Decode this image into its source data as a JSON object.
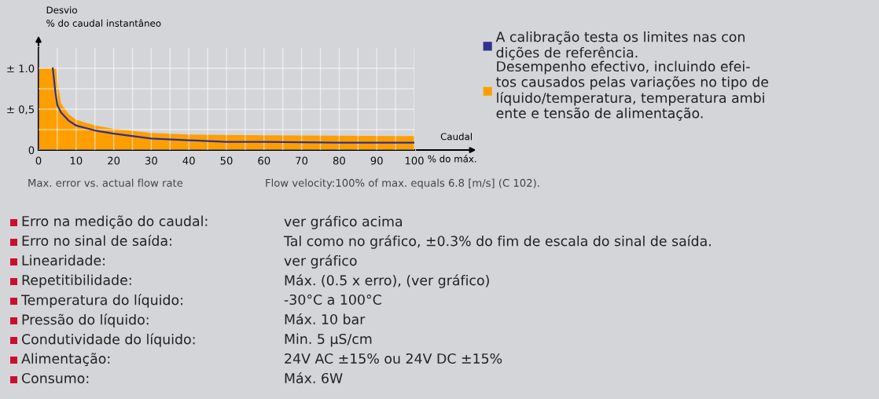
{
  "chart_data": {
    "type": "area",
    "ylabel": "Desvio\n% do caudal instantâneo",
    "xlabel": "Caudal",
    "xlim": [
      0,
      100
    ],
    "ylim": [
      0,
      1.25
    ],
    "xticks": [
      0,
      {
        "value": 5,
        "label": null
      },
      10,
      {
        "value": 15,
        "label": null
      },
      20,
      {
        "value": 25,
        "label": null
      },
      30,
      {
        "value": 35,
        "label": null
      },
      40,
      {
        "value": 45,
        "label": null
      },
      50,
      {
        "value": 55,
        "label": null
      },
      60,
      {
        "value": 65,
        "label": null
      },
      70,
      {
        "value": 75,
        "label": null
      },
      80,
      {
        "value": 85,
        "label": null
      },
      90,
      {
        "value": 95,
        "label": null
      },
      100
    ],
    "yticks": [
      0,
      {
        "value": 0.25,
        "label": null
      },
      {
        "value": 0.5,
        "label": "± 0,5"
      },
      {
        "value": 0.75,
        "label": null
      },
      {
        "value": 1.0,
        "label": "± 1.0"
      }
    ],
    "grid": true,
    "legend": "right",
    "series": [
      {
        "name": "A calibração testa os limites nas con\ndições de referência.",
        "type": "line",
        "color": "#2e3192",
        "x": [
          3.8,
          4.5,
          5,
          6,
          8,
          10,
          15,
          20,
          30,
          40,
          50,
          60,
          80,
          100
        ],
        "values": [
          1.0,
          0.7,
          0.55,
          0.46,
          0.36,
          0.3,
          0.24,
          0.2,
          0.14,
          0.12,
          0.1,
          0.1,
          0.09,
          0.09
        ]
      },
      {
        "name": "Desempenho efectivo, incluindo efei-\ntos causados pelas variações no tipo de\nlíquido/temperatura, temperatura ambi\nente e tensão de alimentação.",
        "color": "#ff9e00",
        "x": [
          0,
          4.7,
          5,
          6,
          8,
          10,
          15,
          20,
          30,
          40,
          60,
          100
        ],
        "values": [
          1.0,
          1.0,
          0.85,
          0.57,
          0.44,
          0.37,
          0.3,
          0.26,
          0.21,
          0.19,
          0.18,
          0.17
        ]
      }
    ],
    "annotations": [
      "% do máx.",
      "Max. error vs. actual flow rate",
      "Flow velocity:100% of max. equals 6.8 [m/s] (C 102).",
      "Erro na medição do caudal:",
      "ver gráfico acima",
      "Erro no sinal de saída:",
      "Tal como no gráfico, ±0.3% do fim de escala do sinal de saída.",
      "Linearidade:",
      "ver gráfico",
      "Repetitibilidade:",
      "Máx. (0.5 x erro), (ver gráfico)",
      "Temperatura do líquido:",
      "-30°C a 100°C",
      "Pressão do líquido:",
      "Máx. 10 bar",
      "Condutividade do líquido:",
      "Min. 5 µS/cm",
      "Alimentação:",
      "24V AC ±15% ou 24V DC ±15%",
      "Consumo:",
      "Máx. 6W"
    ]
  }
}
